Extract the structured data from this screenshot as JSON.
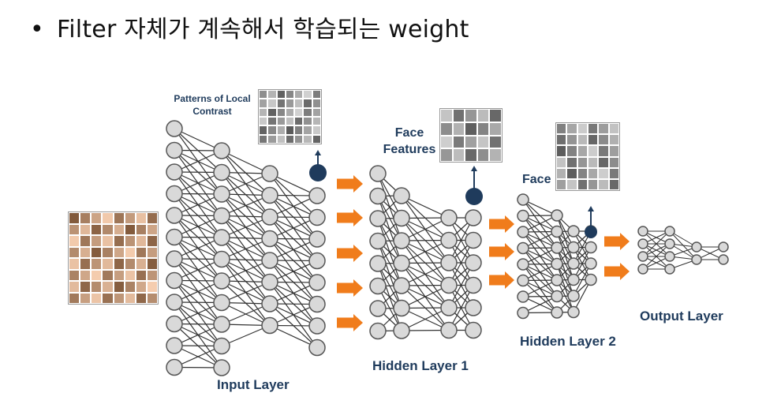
{
  "heading": {
    "bullet": "•",
    "text": "Filter 자체가 계속해서 학습되는 weight"
  },
  "labels": {
    "patterns": [
      "Patterns of Local",
      "Contrast"
    ],
    "face_features": [
      "Face",
      "Features"
    ],
    "face": "Face",
    "input_layer": "Input Layer",
    "hidden_layer_1": "Hidden Layer 1",
    "hidden_layer_2": "Hidden Layer 2",
    "output_layer": "Output Layer"
  },
  "colors": {
    "node_fill": "#d9d9d9",
    "node_stroke": "#555555",
    "highlight_node": "#1f3b5c",
    "arrow": "#f07c1b",
    "edge": "#333333"
  },
  "networks": [
    {
      "name": "input-network",
      "layers": [
        12,
        11,
        8,
        8
      ]
    },
    {
      "name": "hidden1-network",
      "layers": [
        8,
        7,
        6,
        6
      ]
    },
    {
      "name": "hidden2-network",
      "layers": [
        8,
        7,
        6,
        4
      ]
    },
    {
      "name": "output-network",
      "layers": [
        4,
        4,
        2,
        2
      ]
    }
  ]
}
